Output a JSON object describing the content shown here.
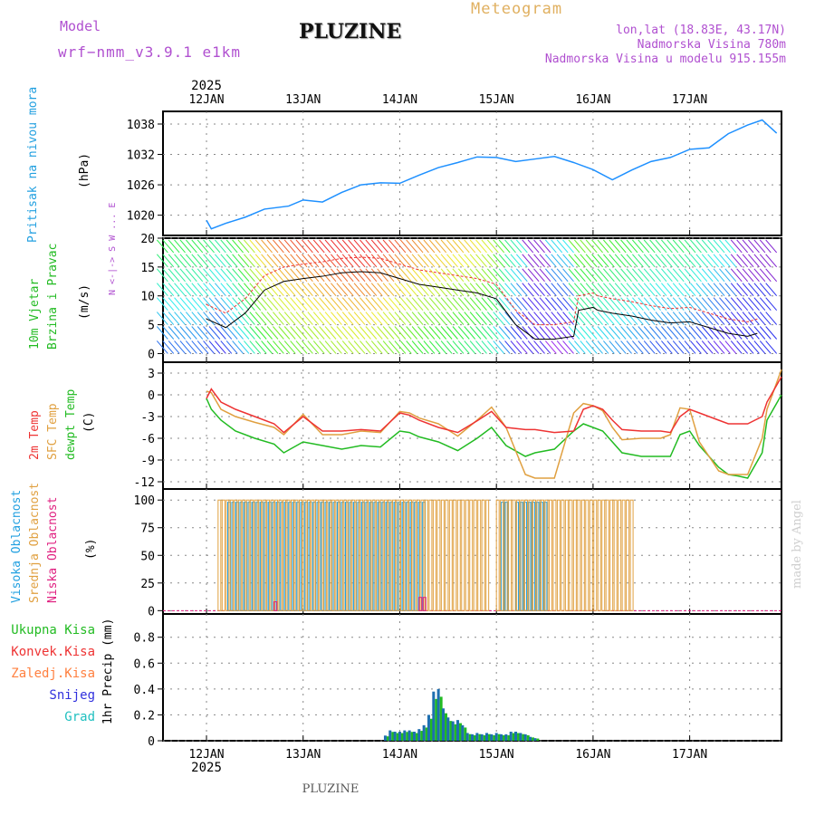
{
  "header": {
    "model_label": "Model",
    "model_name": "wrf−nmm_v3.9.1  e1km",
    "station": "PLUZINE",
    "product": "Meteogram",
    "coords": "lon,lat (18.83E, 43.17N)",
    "elevation": "Nadmorska Visina 780m",
    "model_elevation": "Nadmorska Visina u modelu 915.155m",
    "credit": "made by Angel",
    "footer_station": "PLUZINE"
  },
  "colors": {
    "pressure": "#1e90ff",
    "temp2m": "#ee3333",
    "sfc": "#e0a040",
    "dewpt": "#22bb22",
    "cloud_high": "#22a0e0",
    "cloud_mid": "#e0a040",
    "cloud_low": "#e02080",
    "precip_total": "#22bb22",
    "precip_conv": "#ee3333",
    "precip_frz": "#ff8040",
    "precip_snow": "#3030dd",
    "precip_grad": "#20c0c0"
  },
  "chart_data": [
    {
      "type": "line",
      "panel": "pressure",
      "ylabel": "Pritisak na nivou mora",
      "unit": "(hPa)",
      "yticks": [
        1020,
        1026,
        1032,
        1038
      ],
      "ylim": [
        1016,
        1040.5
      ],
      "x": [
        0.0,
        0.05,
        0.2,
        0.4,
        0.6,
        0.85,
        1.0,
        1.2,
        1.4,
        1.6,
        1.8,
        2.0,
        2.2,
        2.4,
        2.6,
        2.8,
        3.0,
        3.2,
        3.4,
        3.6,
        3.8,
        4.0,
        4.2,
        4.4,
        4.6,
        4.8,
        5.0,
        5.2,
        5.4,
        5.6,
        5.75,
        5.9
      ],
      "values": [
        1019.0,
        1017.3,
        1018.4,
        1019.6,
        1021.2,
        1021.8,
        1023.0,
        1022.6,
        1024.5,
        1026.0,
        1026.4,
        1026.3,
        1027.9,
        1029.4,
        1030.4,
        1031.5,
        1031.4,
        1030.6,
        1031.1,
        1031.6,
        1030.4,
        1029.0,
        1027.0,
        1028.9,
        1030.6,
        1031.4,
        1033.0,
        1033.3,
        1036.1,
        1037.8,
        1038.8,
        1036.2
      ]
    },
    {
      "type": "line",
      "panel": "wind",
      "ylabel": "10m Vjetar Brzina i Pravac",
      "unit": "(m/s)",
      "compass": "N <-|-> S  W ... E",
      "yticks": [
        0,
        5,
        10,
        15,
        20
      ],
      "ylim": [
        -1.5,
        20
      ],
      "x": [
        0.0,
        0.2,
        0.4,
        0.6,
        0.8,
        1.0,
        1.2,
        1.4,
        1.6,
        1.8,
        2.0,
        2.2,
        2.4,
        2.6,
        2.8,
        3.0,
        3.2,
        3.4,
        3.6,
        3.8,
        3.85,
        4.0,
        4.05,
        4.2,
        4.4,
        4.6,
        4.8,
        5.0,
        5.2,
        5.4,
        5.6,
        5.7
      ],
      "values": [
        6.0,
        4.5,
        7.0,
        11.0,
        12.5,
        13.0,
        13.4,
        14.0,
        14.2,
        14.0,
        13.0,
        12.0,
        11.5,
        11.0,
        10.5,
        9.5,
        5.0,
        2.5,
        2.5,
        3.0,
        7.5,
        8.0,
        7.5,
        7.0,
        6.5,
        5.8,
        5.3,
        5.5,
        4.5,
        3.5,
        3.0,
        3.5
      ]
    },
    {
      "type": "line",
      "panel": "temperature",
      "ylabel": "2m Temp / SFC Temp / dewpt Temp",
      "unit": "(C)",
      "yticks": [
        -12,
        -9,
        -6,
        -3,
        0,
        3
      ],
      "ylim": [
        -13,
        4.5
      ],
      "x": [
        0.0,
        0.05,
        0.15,
        0.3,
        0.5,
        0.7,
        0.8,
        1.0,
        1.2,
        1.4,
        1.6,
        1.8,
        2.0,
        2.1,
        2.2,
        2.4,
        2.6,
        2.8,
        2.95,
        3.1,
        3.3,
        3.4,
        3.6,
        3.8,
        3.9,
        4.0,
        4.1,
        4.2,
        4.3,
        4.5,
        4.7,
        4.8,
        4.9,
        5.0,
        5.1,
        5.3,
        5.4,
        5.5,
        5.6,
        5.75,
        5.8,
        5.95
      ],
      "series": [
        {
          "name": "2m Temp",
          "color": "#ee3333",
          "values": [
            -0.5,
            0.8,
            -1.0,
            -2.0,
            -3.0,
            -4.0,
            -5.2,
            -3.0,
            -5.0,
            -5.0,
            -4.8,
            -5.0,
            -2.5,
            -2.8,
            -3.5,
            -4.5,
            -5.2,
            -3.6,
            -2.3,
            -4.5,
            -4.8,
            -4.8,
            -5.2,
            -5.0,
            -2.0,
            -1.5,
            -2.0,
            -3.5,
            -4.8,
            -5.0,
            -5.0,
            -5.2,
            -3.0,
            -2.0,
            -2.5,
            -3.5,
            -4.0,
            -4.0,
            -4.0,
            -3.0,
            -1.0,
            2.5
          ]
        },
        {
          "name": "SFC Temp",
          "color": "#e0a040",
          "values": [
            0.5,
            0.3,
            -2.0,
            -3.0,
            -3.8,
            -4.5,
            -5.5,
            -2.7,
            -5.5,
            -5.5,
            -5.0,
            -5.2,
            -2.3,
            -2.5,
            -3.2,
            -4.0,
            -5.7,
            -3.5,
            -1.7,
            -4.5,
            -11.0,
            -11.5,
            -11.5,
            -2.5,
            -1.2,
            -1.5,
            -2.2,
            -4.5,
            -6.2,
            -6.0,
            -6.0,
            -5.5,
            -1.8,
            -2.0,
            -6.5,
            -10.5,
            -11.0,
            -11.0,
            -11.0,
            -6.0,
            -2.0,
            3.5
          ]
        },
        {
          "name": "dewpt Temp",
          "color": "#22bb22",
          "values": [
            -0.5,
            -2.0,
            -3.5,
            -5.0,
            -6.0,
            -6.8,
            -8.0,
            -6.5,
            -7.0,
            -7.5,
            -7.0,
            -7.2,
            -5.0,
            -5.2,
            -5.8,
            -6.5,
            -7.7,
            -6.0,
            -4.5,
            -7.0,
            -8.5,
            -8.0,
            -7.5,
            -5.0,
            -4.0,
            -4.5,
            -5.0,
            -6.5,
            -8.0,
            -8.5,
            -8.5,
            -8.5,
            -5.5,
            -5.0,
            -7.0,
            -10.0,
            -11.0,
            -11.2,
            -11.5,
            -8.0,
            -3.5,
            0.0
          ]
        }
      ]
    },
    {
      "type": "bar",
      "panel": "clouds",
      "ylabel": "Visoka Oblacnost / Srednja Oblacnost / Niska Oblacnost",
      "unit": "(%)",
      "yticks": [
        0,
        25,
        50,
        75,
        100
      ],
      "ylim": [
        -3,
        110
      ],
      "series": [
        {
          "name": "Visoka Oblacnost",
          "color": "#22a0e0",
          "segments": [
            [
              0.22,
              2.25,
              98
            ],
            [
              3.05,
              3.1,
              98
            ],
            [
              3.2,
              3.5,
              98
            ]
          ]
        },
        {
          "name": "Srednja Oblacnost",
          "color": "#e0a040",
          "segments": [
            [
              0.12,
              2.9,
              100
            ],
            [
              3.0,
              4.4,
              100
            ]
          ]
        },
        {
          "name": "Niska Oblacnost",
          "color": "#e02080",
          "segments": [
            [
              0.7,
              0.72,
              8
            ],
            [
              2.2,
              2.25,
              12
            ]
          ]
        }
      ]
    },
    {
      "type": "bar",
      "panel": "precip",
      "ylabel": "1hr Precip (mm)",
      "unit": "(mm)",
      "yticks": [
        0,
        0.2,
        0.4,
        0.6,
        0.8
      ],
      "ylim": [
        0,
        0.98
      ],
      "x": [
        1.85,
        1.9,
        1.95,
        2.0,
        2.05,
        2.1,
        2.15,
        2.2,
        2.25,
        2.3,
        2.35,
        2.4,
        2.45,
        2.5,
        2.55,
        2.6,
        2.65,
        2.7,
        2.75,
        2.8,
        2.85,
        2.9,
        2.95,
        3.0,
        3.05,
        3.1,
        3.15,
        3.2,
        3.25,
        3.3,
        3.35,
        3.4
      ],
      "values": [
        0.04,
        0.08,
        0.07,
        0.07,
        0.08,
        0.08,
        0.07,
        0.09,
        0.12,
        0.2,
        0.38,
        0.4,
        0.25,
        0.18,
        0.15,
        0.16,
        0.12,
        0.06,
        0.05,
        0.06,
        0.05,
        0.06,
        0.05,
        0.06,
        0.05,
        0.05,
        0.07,
        0.07,
        0.06,
        0.05,
        0.03,
        0.02
      ],
      "legend": [
        "Ukupna Kisa",
        "Konvek.Kisa",
        "Zaledj.Kisa",
        "Snijeg",
        "Grad"
      ]
    }
  ],
  "time_axis": {
    "start_year": "2025",
    "end_year": "2025",
    "day_labels": [
      "12JAN",
      "13JAN",
      "14JAN",
      "15JAN",
      "16JAN",
      "17JAN"
    ]
  },
  "legend_labels": {
    "cloud": [
      "Visoka Oblacnost",
      "Srednja Oblacnost",
      "Niska Oblacnost"
    ],
    "precip": [
      "Ukupna Kisa",
      "Konvek.Kisa",
      "Zaledj.Kisa",
      "Snijeg",
      "Grad"
    ]
  }
}
